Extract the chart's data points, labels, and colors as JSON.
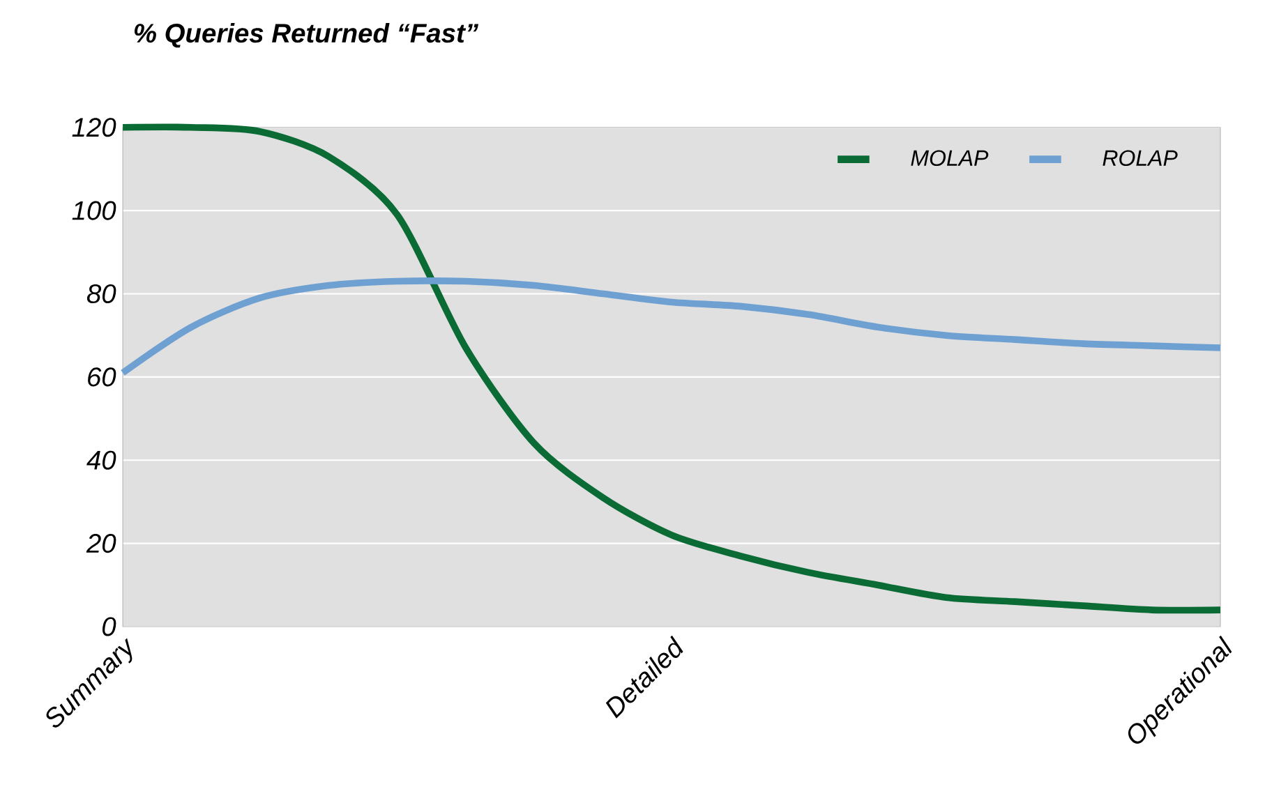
{
  "chart_data": {
    "type": "line",
    "title": "% Queries Returned “Fast”",
    "categories": [
      "Summary",
      null,
      null,
      null,
      null,
      null,
      null,
      null,
      "Detailed",
      null,
      null,
      null,
      null,
      null,
      null,
      null,
      "Operational"
    ],
    "ylim": [
      0,
      120
    ],
    "yticks": [
      0,
      20,
      40,
      60,
      80,
      100,
      120
    ],
    "grid": "y",
    "legend": "top right",
    "marker": "none",
    "line_style": "solid",
    "series": [
      {
        "name": "MOLAP",
        "color": "#0b6b35",
        "values": [
          120,
          120,
          119,
          113,
          99,
          67,
          44,
          31,
          22,
          17,
          13,
          10,
          7,
          6,
          5,
          4,
          4
        ]
      },
      {
        "name": "ROLAP",
        "color": "#6fa0d2",
        "values": [
          61,
          72,
          79,
          82,
          83,
          83,
          82,
          80,
          78,
          77,
          75,
          72,
          70,
          69,
          68,
          67.5,
          67
        ]
      }
    ]
  }
}
